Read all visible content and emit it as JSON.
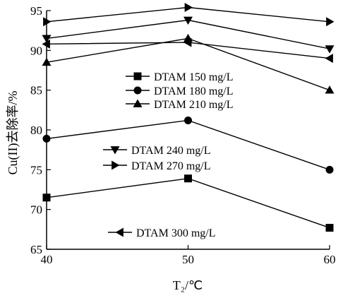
{
  "chart_data": {
    "type": "line",
    "xlabel": "T₂/℃",
    "ylabel": "Cu(II)去除率/%",
    "xlim": [
      40,
      60
    ],
    "ylim": [
      65,
      95
    ],
    "xticks": [
      40,
      50,
      60
    ],
    "yticks": [
      65,
      70,
      75,
      80,
      85,
      90,
      95
    ],
    "x": [
      40,
      50,
      60
    ],
    "grid": false,
    "series": [
      {
        "name": "DTAM 150 mg/L",
        "marker": "square",
        "values": [
          71.5,
          73.9,
          67.7
        ]
      },
      {
        "name": "DTAM 180 mg/L",
        "marker": "circle",
        "values": [
          78.9,
          81.2,
          75.0
        ]
      },
      {
        "name": "DTAM 210 mg/L",
        "marker": "triangle-up",
        "values": [
          88.5,
          91.5,
          85.0
        ]
      },
      {
        "name": "DTAM 240 mg/L",
        "marker": "triangle-down",
        "values": [
          91.5,
          93.8,
          90.2
        ]
      },
      {
        "name": "DTAM 270 mg/L",
        "marker": "triangle-right",
        "values": [
          93.6,
          95.4,
          93.6
        ]
      },
      {
        "name": "DTAM 300 mg/L",
        "marker": "triangle-left",
        "values": [
          90.8,
          91.0,
          89.0
        ]
      }
    ]
  }
}
